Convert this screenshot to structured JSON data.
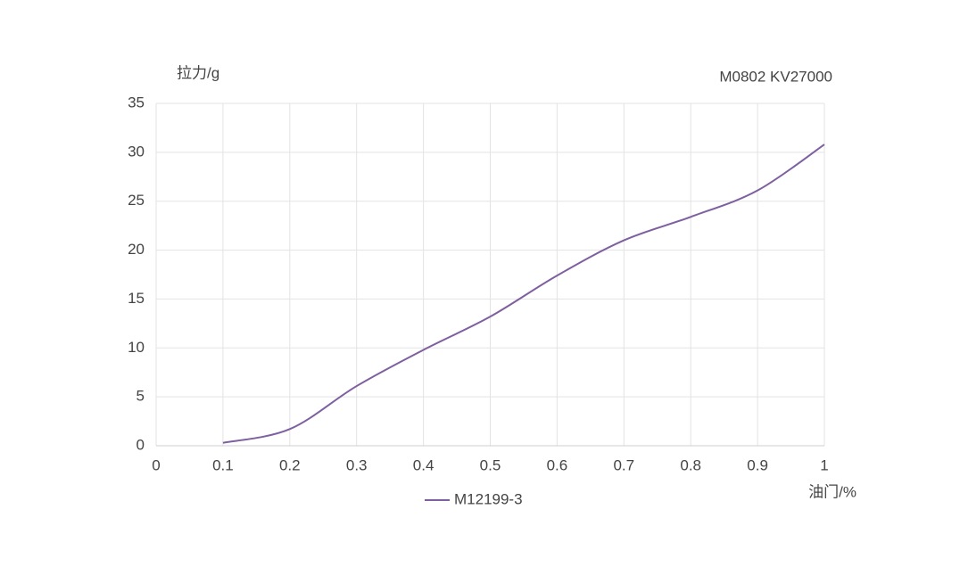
{
  "chart_data": {
    "type": "line",
    "title": "M0802 KV27000",
    "y_label": "拉力/g",
    "x_label": "油门/%",
    "x": [
      0.1,
      0.2,
      0.3,
      0.4,
      0.5,
      0.6,
      0.7,
      0.8,
      0.9,
      1
    ],
    "series": [
      {
        "name": "M12199-3",
        "color": "#7e5fa0",
        "values": [
          0.3,
          1.7,
          6.1,
          9.8,
          13.2,
          17.4,
          21.0,
          23.4,
          26.1,
          30.8
        ]
      }
    ],
    "xlim": [
      0,
      1
    ],
    "xticks": [
      0,
      0.1,
      0.2,
      0.3,
      0.4,
      0.5,
      0.6,
      0.7,
      0.8,
      0.9,
      1
    ],
    "ylim": [
      0,
      35
    ],
    "yticks": [
      0,
      5,
      10,
      15,
      20,
      25,
      30,
      35
    ],
    "grid": true
  }
}
